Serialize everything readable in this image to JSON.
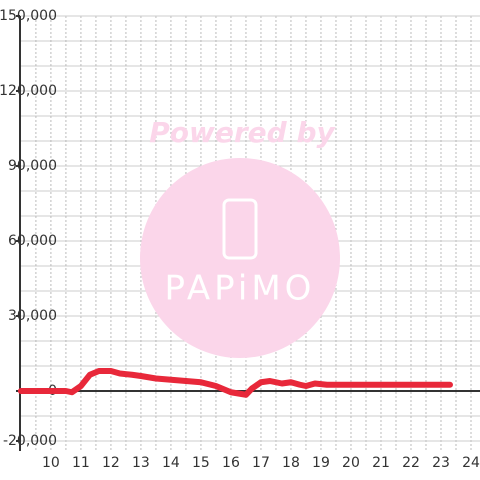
{
  "chart_data": {
    "type": "line",
    "watermark": [
      "Powered by",
      "PAPiMO"
    ],
    "x": [
      9.0,
      10.5,
      10.7,
      11.0,
      11.3,
      11.6,
      12.0,
      12.3,
      12.7,
      13.0,
      13.5,
      14.0,
      14.5,
      15.0,
      15.5,
      16.0,
      16.5,
      16.7,
      17.0,
      17.3,
      17.7,
      18.0,
      18.3,
      18.5,
      18.8,
      19.2,
      20.0,
      23.3
    ],
    "series": [
      {
        "color": "#e8283a",
        "values": [
          0,
          0,
          -500,
          2000,
          6500,
          8000,
          8000,
          7000,
          6500,
          6000,
          5000,
          4500,
          4000,
          3500,
          2000,
          -500,
          -1500,
          1000,
          3500,
          4000,
          3000,
          3500,
          2500,
          2000,
          3000,
          2500,
          2500,
          2500
        ]
      }
    ],
    "xlim": [
      8.97,
      24.3
    ],
    "xticks": [
      10,
      11,
      12,
      13,
      14,
      15,
      16,
      17,
      18,
      19,
      20,
      21,
      22,
      23,
      24
    ],
    "minor_xticks": [
      9.5,
      10.5,
      11.5,
      12.5,
      13.5,
      14.5,
      15.5,
      16.5,
      17.5,
      18.5,
      19.5,
      20.5,
      21.5,
      22.5,
      23.5
    ],
    "ylim": [
      -24000,
      150000
    ],
    "yticks": [
      {
        "value": 150000,
        "label": "150,000"
      },
      {
        "value": 120000,
        "label": "120,000"
      },
      {
        "value": 90000,
        "label": "90,000"
      },
      {
        "value": 60000,
        "label": "60,000"
      },
      {
        "value": 30000,
        "label": "30,000"
      },
      0,
      {
        "value": -20000,
        "label": "-20,000"
      }
    ],
    "minor_yticks": [
      140000,
      130000,
      110000,
      100000,
      80000,
      70000,
      50000,
      40000,
      20000,
      10000,
      -10000
    ],
    "grid": true
  }
}
